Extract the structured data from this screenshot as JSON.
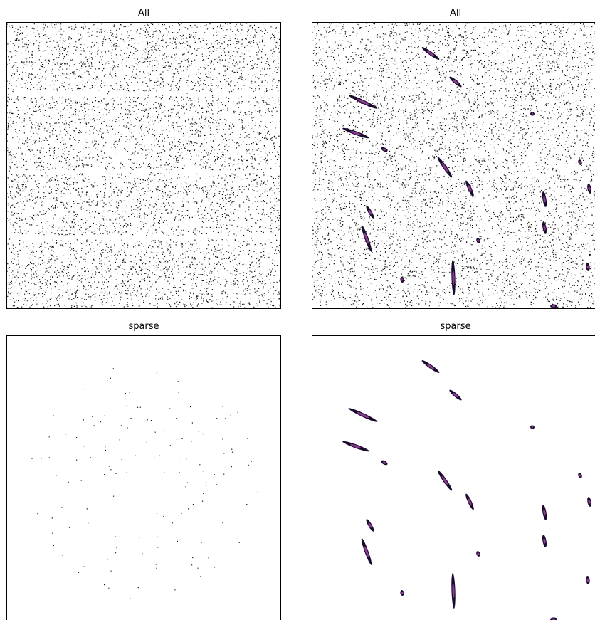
{
  "panels": [
    {
      "title": "All"
    },
    {
      "title": "All"
    },
    {
      "title": "sparse"
    },
    {
      "title": "sparse"
    }
  ]
}
